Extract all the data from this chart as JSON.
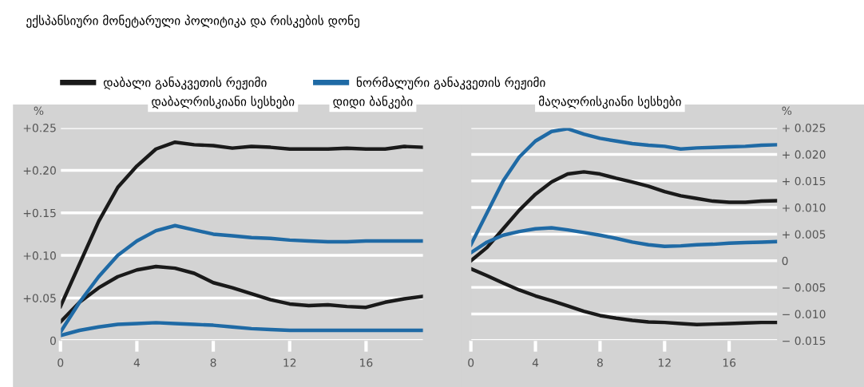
{
  "chart_data": [
    {
      "type": "line",
      "title": "ექსპანსიური მონეტარული პოლიტიკა და რისკების დონე",
      "ylabel": "%",
      "legend": "top",
      "grid": "y",
      "marker": "none",
      "line_style": "solid",
      "x": [
        0,
        1,
        2,
        3,
        4,
        5,
        6,
        7,
        8,
        9,
        10,
        11,
        12,
        13,
        14,
        15,
        16,
        17,
        18,
        19
      ],
      "xlim": [
        0,
        19
      ],
      "xticks": [
        0,
        4,
        8,
        12,
        16
      ],
      "ylim": [
        0,
        0.25
      ],
      "yticks": [
        {
          "value": 0,
          "label": "0"
        },
        {
          "value": 0.05,
          "label": "+0.05"
        },
        {
          "value": 0.1,
          "label": "+0.10"
        },
        {
          "value": 0.15,
          "label": "+0.15"
        },
        {
          "value": 0.2,
          "label": "+0.20"
        },
        {
          "value": 0.25,
          "label": "+0.25"
        }
      ],
      "annotations": [
        "დაბალრისკიანი სესხები",
        "დიდი ბანკები"
      ],
      "series": [
        {
          "name": "დაბალი განაკვეთის რეჟიმი",
          "color": "#1a1a1a",
          "values": [
            0.04,
            0.09,
            0.14,
            0.18,
            0.205,
            0.225,
            0.233,
            0.23,
            0.229,
            0.226,
            0.228,
            0.227,
            0.225,
            0.225,
            0.225,
            0.226,
            0.225,
            0.225,
            0.228,
            0.227
          ]
        },
        {
          "color": "#1a1a1a",
          "values": [
            0.022,
            0.045,
            0.062,
            0.075,
            0.083,
            0.087,
            0.085,
            0.079,
            0.068,
            0.062,
            0.055,
            0.048,
            0.043,
            0.041,
            0.042,
            0.04,
            0.039,
            0.045,
            0.049,
            0.052
          ]
        },
        {
          "name": "ნორმალური განაკვეთის რეჟიმი",
          "color": "#1f6aa5",
          "values": [
            0.01,
            0.045,
            0.075,
            0.1,
            0.117,
            0.129,
            0.135,
            0.13,
            0.125,
            0.123,
            0.121,
            0.12,
            0.118,
            0.117,
            0.116,
            0.116,
            0.117,
            0.117,
            0.117,
            0.117
          ]
        },
        {
          "color": "#1f6aa5",
          "values": [
            0.006,
            0.012,
            0.016,
            0.019,
            0.02,
            0.021,
            0.02,
            0.019,
            0.018,
            0.016,
            0.014,
            0.013,
            0.012,
            0.012,
            0.012,
            0.012,
            0.012,
            0.012,
            0.012,
            0.012
          ]
        }
      ]
    },
    {
      "type": "line",
      "ylabel": "%",
      "grid": "y",
      "marker": "none",
      "line_style": "solid",
      "x": [
        0,
        1,
        2,
        3,
        4,
        5,
        6,
        7,
        8,
        9,
        10,
        11,
        12,
        13,
        14,
        15,
        16,
        17,
        18,
        19
      ],
      "xlim": [
        0,
        19
      ],
      "xticks": [
        0,
        4,
        8,
        12,
        16
      ],
      "ylim": [
        -0.015,
        0.025
      ],
      "yticks": [
        {
          "value": -0.015,
          "label": "− 0.015"
        },
        {
          "value": -0.01,
          "label": "− 0.010"
        },
        {
          "value": -0.005,
          "label": "− 0.005"
        },
        {
          "value": 0,
          "label": "0"
        },
        {
          "value": 0.005,
          "label": "+ 0.005"
        },
        {
          "value": 0.01,
          "label": "+ 0.010"
        },
        {
          "value": 0.015,
          "label": "+ 0.015"
        },
        {
          "value": 0.02,
          "label": "+ 0.020"
        },
        {
          "value": 0.025,
          "label": "+ 0.025"
        }
      ],
      "annotations": [
        "მაღალრისკიანი სესხები"
      ],
      "series": [
        {
          "color": "#1f6aa5",
          "values": [
            0.003,
            0.009,
            0.015,
            0.0195,
            0.0225,
            0.0243,
            0.0248,
            0.0238,
            0.023,
            0.0225,
            0.022,
            0.0217,
            0.0215,
            0.021,
            0.0212,
            0.0213,
            0.0214,
            0.0215,
            0.0217,
            0.0218
          ]
        },
        {
          "color": "#1a1a1a",
          "values": [
            0.0,
            0.0025,
            0.006,
            0.0095,
            0.0125,
            0.0148,
            0.0163,
            0.0167,
            0.0163,
            0.0155,
            0.0148,
            0.014,
            0.013,
            0.0122,
            0.0117,
            0.0112,
            0.011,
            0.011,
            0.0112,
            0.0113
          ]
        },
        {
          "color": "#1f6aa5",
          "values": [
            0.0015,
            0.0035,
            0.0048,
            0.0055,
            0.006,
            0.0062,
            0.0058,
            0.0053,
            0.0048,
            0.0042,
            0.0035,
            0.003,
            0.0027,
            0.0028,
            0.003,
            0.0031,
            0.0033,
            0.0034,
            0.0035,
            0.0036
          ]
        },
        {
          "color": "#1a1a1a",
          "values": [
            -0.0015,
            -0.0028,
            -0.0042,
            -0.0055,
            -0.0066,
            -0.0075,
            -0.0085,
            -0.0095,
            -0.0103,
            -0.0108,
            -0.0112,
            -0.0115,
            -0.0116,
            -0.0118,
            -0.012,
            -0.0119,
            -0.0118,
            -0.0117,
            -0.0116,
            -0.0116
          ]
        }
      ]
    }
  ]
}
